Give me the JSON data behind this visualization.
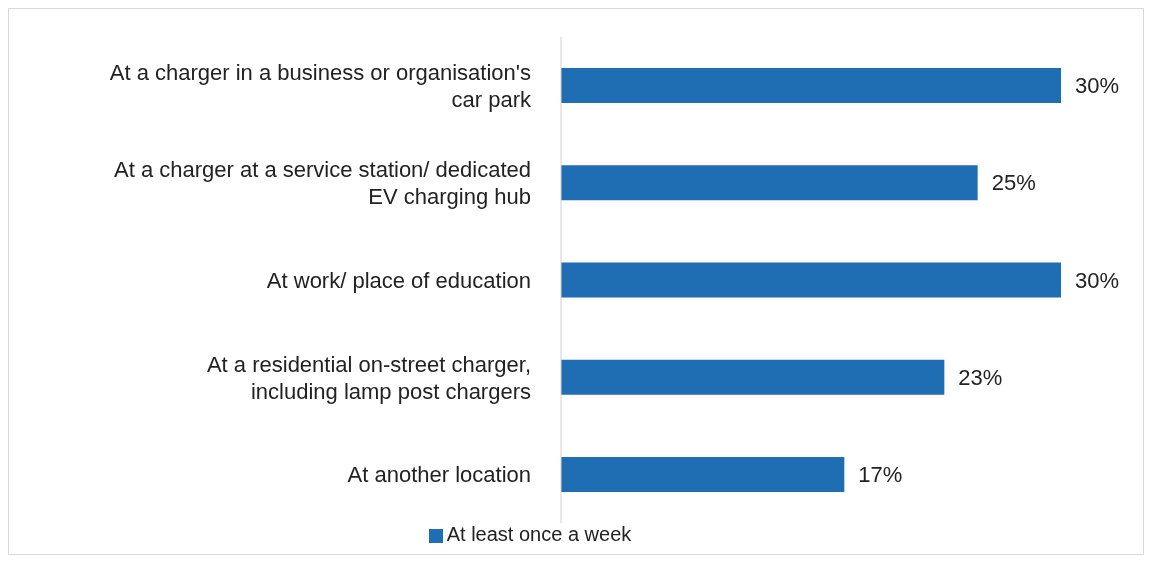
{
  "chart_data": {
    "type": "bar",
    "orientation": "horizontal",
    "legend": "bottom",
    "categories": [
      "At a charger in a business or organisation's car park",
      "At a charger at a service station/ dedicated EV charging hub",
      "At work/ place of education",
      "At a residential on-street charger, including lamp post chargers",
      "At another location"
    ],
    "series": [
      {
        "name": "At least once a week",
        "color": "#1f6db3",
        "values": [
          30,
          25,
          30,
          23,
          17
        ],
        "value_labels": [
          "30%",
          "25%",
          "30%",
          "23%",
          "17%"
        ]
      }
    ]
  }
}
